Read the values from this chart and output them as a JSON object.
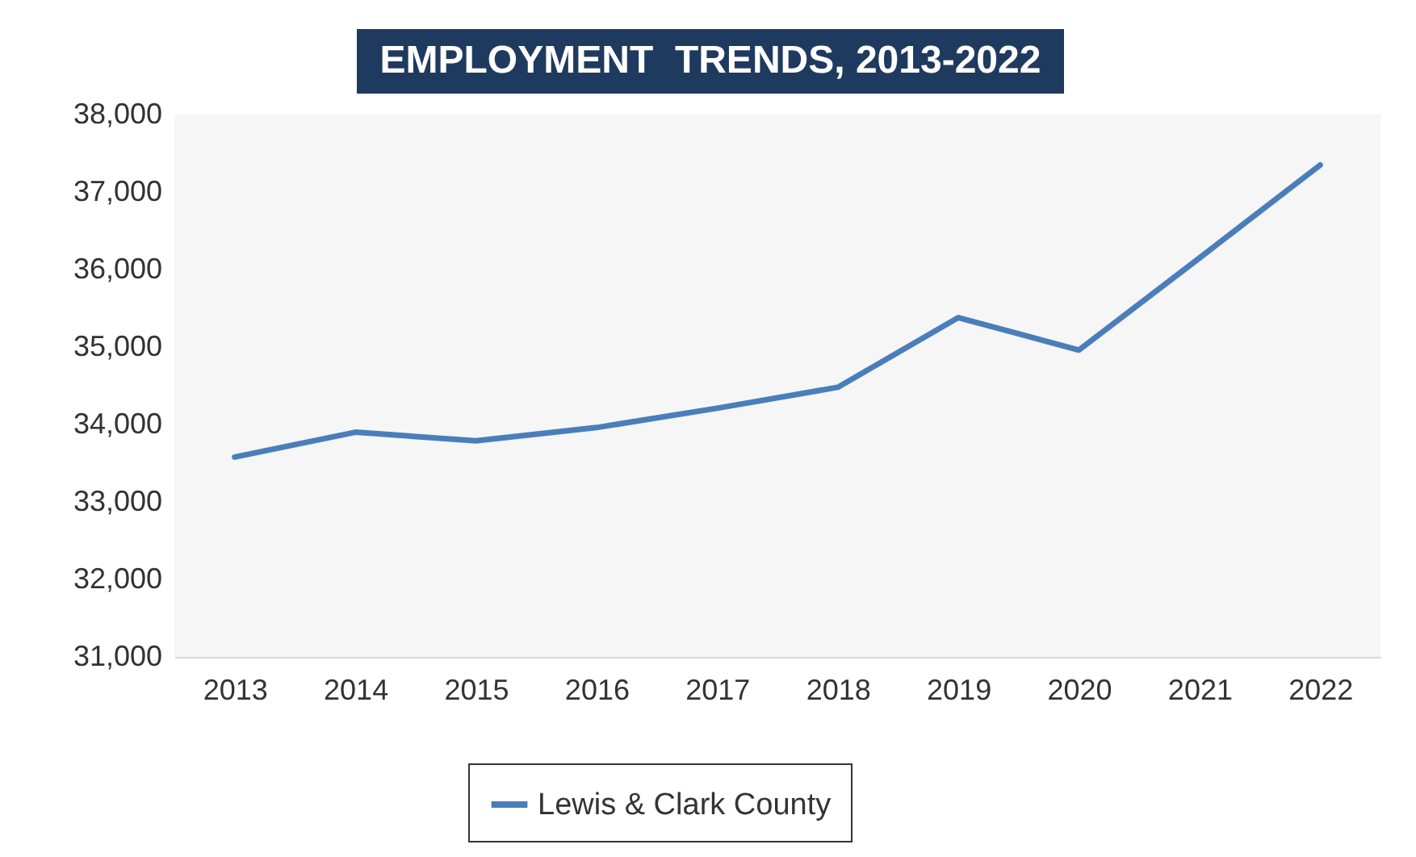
{
  "chart_data": {
    "type": "line",
    "title": "EMPLOYMENT  TRENDS, 2013-2022",
    "categories": [
      "2013",
      "2014",
      "2015",
      "2016",
      "2017",
      "2018",
      "2019",
      "2020",
      "2021",
      "2022"
    ],
    "series": [
      {
        "name": "Lewis & Clark County",
        "color": "#4a7ebb",
        "values": [
          33580,
          33900,
          33790,
          33960,
          34210,
          34480,
          35380,
          34960,
          36150,
          37350
        ]
      }
    ],
    "ylim": [
      31000,
      38000
    ],
    "yticks": [
      {
        "value": 31000,
        "label": "31,000"
      },
      {
        "value": 32000,
        "label": "32,000"
      },
      {
        "value": 33000,
        "label": "33,000"
      },
      {
        "value": 34000,
        "label": "34,000"
      },
      {
        "value": 35000,
        "label": "35,000"
      },
      {
        "value": 36000,
        "label": "36,000"
      },
      {
        "value": 37000,
        "label": "37,000"
      },
      {
        "value": 38000,
        "label": "38,000"
      }
    ],
    "grid": false,
    "legend": "bottom",
    "marker": "none",
    "line_style": "solid"
  }
}
